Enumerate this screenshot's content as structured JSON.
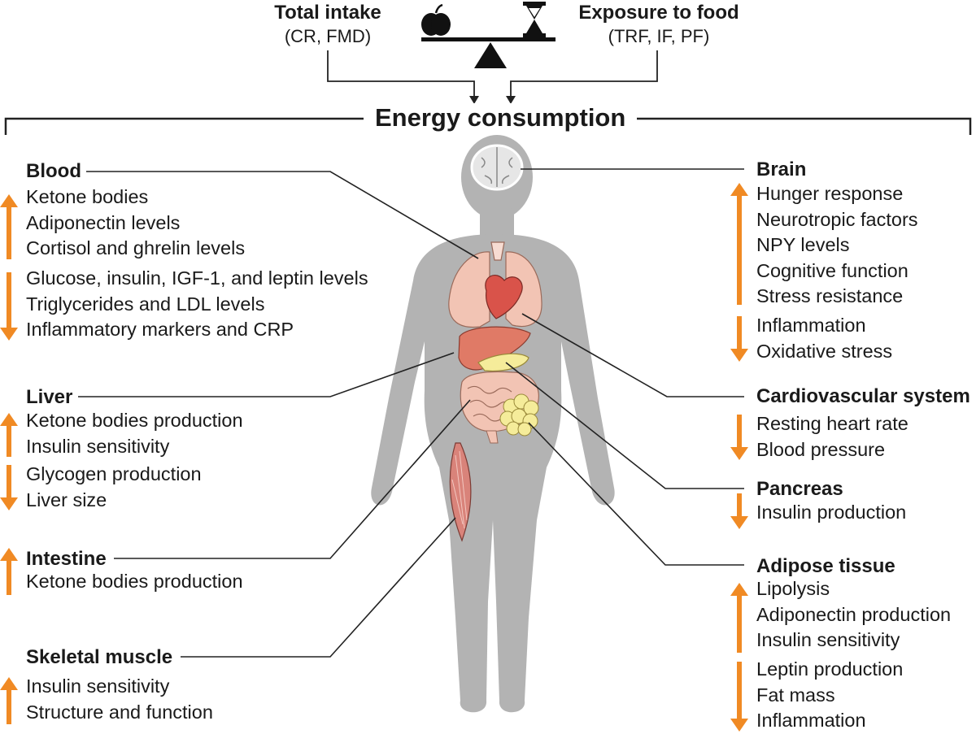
{
  "top": {
    "total_intake": {
      "title": "Total intake",
      "sub": "(CR, FMD)"
    },
    "exposure": {
      "title": "Exposure to food",
      "sub": "(TRF, IF, PF)"
    }
  },
  "title": "Energy consumption",
  "colors": {
    "arrow": "#f08a24",
    "body": "#b3b3b3",
    "line": "#222222"
  },
  "organs": {
    "blood": {
      "name": "Blood",
      "up": [
        "Ketone bodies",
        "Adiponectin levels",
        "Cortisol and ghrelin levels"
      ],
      "down": [
        "Glucose, insulin, IGF-1, and leptin levels",
        "Triglycerides and LDL levels",
        "Inflammatory markers and CRP"
      ]
    },
    "liver": {
      "name": "Liver",
      "up": [
        "Ketone bodies production",
        "Insulin sensitivity"
      ],
      "down": [
        "Glycogen production",
        "Liver size"
      ]
    },
    "intestine": {
      "name": "Intestine",
      "up": [
        "Ketone bodies production"
      ]
    },
    "skeletal_muscle": {
      "name": "Skeletal muscle",
      "up": [
        "Insulin sensitivity",
        "Structure and function"
      ]
    },
    "brain": {
      "name": "Brain",
      "up": [
        "Hunger response",
        "Neurotropic factors",
        "NPY levels",
        "Cognitive function",
        "Stress resistance"
      ],
      "down": [
        "Inflammation",
        "Oxidative stress"
      ]
    },
    "cardiovascular": {
      "name": "Cardiovascular system",
      "down": [
        "Resting heart rate",
        "Blood pressure"
      ]
    },
    "pancreas": {
      "name": "Pancreas",
      "down": [
        "Insulin production"
      ]
    },
    "adipose": {
      "name": "Adipose tissue",
      "up": [
        "Lipolysis",
        "Adiponectin production",
        "Insulin sensitivity"
      ],
      "down": [
        "Leptin production",
        "Fat mass",
        "Inflammation"
      ]
    }
  }
}
